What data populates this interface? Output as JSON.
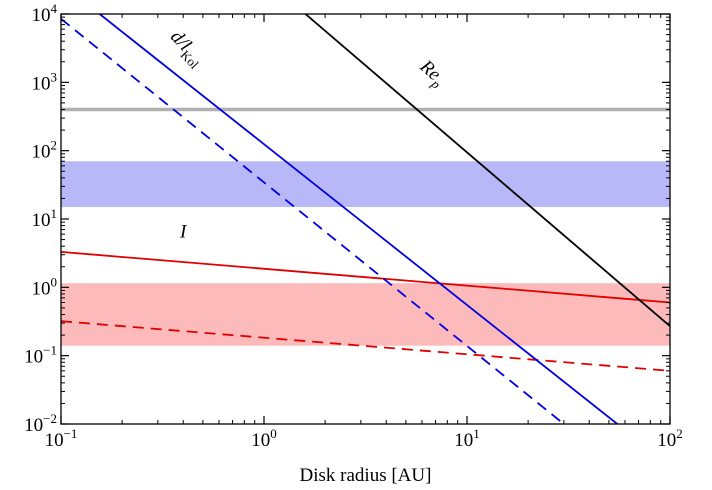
{
  "chart_data": {
    "type": "line",
    "xlabel": "Disk radius [AU]",
    "ylabel": "",
    "xscale": "log",
    "yscale": "log",
    "xlim": [
      0.1,
      100
    ],
    "ylim": [
      0.01,
      10000
    ],
    "grid": false,
    "x_ticks": [
      {
        "value": 0.1,
        "base": "10",
        "exp": "−1"
      },
      {
        "value": 1,
        "base": "10",
        "exp": "0"
      },
      {
        "value": 10,
        "base": "10",
        "exp": "1"
      },
      {
        "value": 100,
        "base": "10",
        "exp": "2"
      }
    ],
    "y_ticks": [
      {
        "value": 0.01,
        "base": "10",
        "exp": "−2"
      },
      {
        "value": 0.1,
        "base": "10",
        "exp": "−1"
      },
      {
        "value": 1,
        "base": "10",
        "exp": "0"
      },
      {
        "value": 10,
        "base": "10",
        "exp": "1"
      },
      {
        "value": 100,
        "base": "10",
        "exp": "2"
      },
      {
        "value": 1000,
        "base": "10",
        "exp": "3"
      },
      {
        "value": 10000,
        "base": "10",
        "exp": "4"
      }
    ],
    "bands": [
      {
        "y0": 15,
        "y1": 70,
        "color": "#b8b8f8"
      },
      {
        "y0": 0.14,
        "y1": 1.15,
        "color": "#fcbaba"
      }
    ],
    "hlines": [
      {
        "y": 400,
        "color": "#b0b0b0"
      }
    ],
    "series": [
      {
        "x": [
          0.1,
          100
        ],
        "y": [
          3.3,
          0.6
        ],
        "color": "#e00000",
        "dash": "solid"
      },
      {
        "x": [
          0.1,
          100
        ],
        "y": [
          0.32,
          0.06
        ],
        "color": "#e00000",
        "dash": "dashed"
      },
      {
        "x": [
          0.155,
          55
        ],
        "y": [
          10000,
          0.01
        ],
        "color": "#0000e0",
        "dash": "solid"
      },
      {
        "x": [
          0.1,
          30
        ],
        "y": [
          8500,
          0.01
        ],
        "color": "#0000e0",
        "dash": "dashed"
      },
      {
        "x": [
          1.6,
          100
        ],
        "y": [
          10000,
          0.27
        ],
        "color": "#000000",
        "dash": "solid"
      }
    ],
    "annotations": [
      {
        "label": "I",
        "sub": "",
        "x": 0.4,
        "y": 5.4,
        "angle": 0
      },
      {
        "label": "d/l",
        "sub": "Kol",
        "x": 0.4,
        "y": 2800,
        "angle": 47
      },
      {
        "label": "Re",
        "sub": "p",
        "x": 6.5,
        "y": 1200,
        "angle": 42
      }
    ]
  }
}
